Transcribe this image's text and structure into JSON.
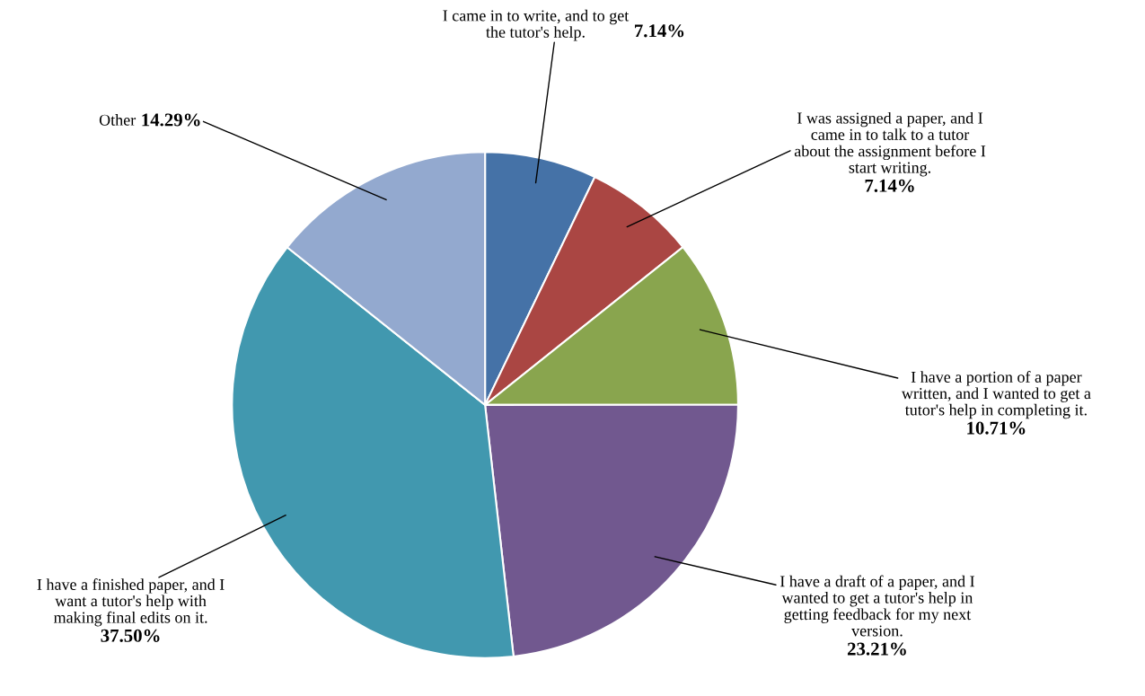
{
  "chart_data": {
    "type": "pie",
    "categories": [
      "I came in to write, and to get\nthe tutor's help.",
      "I was assigned a paper, and I\ncame in to talk to a tutor\nabout the assignment before I\nstart writing.",
      "I have a portion of a paper\nwritten, and I wanted to get a\ntutor's help in completing it.",
      "I have a draft of a paper, and I\nwanted to get a tutor's help in\ngetting feedback for my next\nversion.",
      "I have a finished paper, and I\nwant a tutor's help with\nmaking final edits on it.",
      "Other"
    ],
    "values": [
      7.14,
      7.14,
      10.71,
      23.21,
      37.5,
      14.29
    ],
    "value_labels": [
      "7.14%",
      "7.14%",
      "10.71%",
      "23.21%",
      "37.50%",
      "14.29%"
    ],
    "colors": [
      "#4572a7",
      "#aa4643",
      "#89a54e",
      "#71588f",
      "#4198af",
      "#93a9cf"
    ]
  }
}
